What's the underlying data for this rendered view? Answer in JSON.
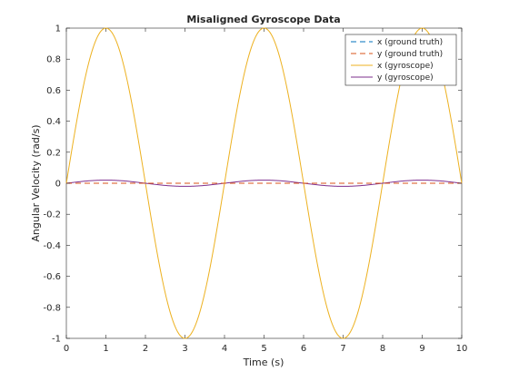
{
  "chart_data": {
    "type": "line",
    "title": "Misaligned Gyroscope Data",
    "xlabel": "Time (s)",
    "ylabel": "Angular Velocity (rad/s)",
    "xlim": [
      0,
      10
    ],
    "ylim": [
      -1,
      1
    ],
    "xticks": [
      0,
      1,
      2,
      3,
      4,
      5,
      6,
      7,
      8,
      9,
      10
    ],
    "xtick_labels": [
      "0",
      "1",
      "2",
      "3",
      "4",
      "5",
      "6",
      "7",
      "8",
      "9",
      "10"
    ],
    "yticks": [
      -1,
      -0.8,
      -0.6,
      -0.4,
      -0.2,
      0,
      0.2,
      0.4,
      0.6,
      0.8,
      1
    ],
    "ytick_labels": [
      "-1",
      "-0.8",
      "-0.6",
      "-0.4",
      "-0.2",
      "0",
      "0.2",
      "0.4",
      "0.6",
      "0.8",
      "1"
    ],
    "grid": false,
    "legend_position": "top-right",
    "series": [
      {
        "name": "x (ground truth)",
        "style": "dashed",
        "color": "#0072BD",
        "x": [
          0,
          10
        ],
        "y": [
          0,
          0
        ]
      },
      {
        "name": "y (ground truth)",
        "style": "dashed",
        "color": "#D95319",
        "x": [
          0,
          10
        ],
        "y": [
          0,
          0
        ]
      },
      {
        "name": "x (gyroscope)",
        "style": "solid",
        "color": "#EDB120",
        "x": [
          0,
          0.25,
          0.5,
          0.75,
          1,
          1.25,
          1.5,
          1.75,
          2,
          2.25,
          2.5,
          2.75,
          3,
          3.25,
          3.5,
          3.75,
          4,
          4.25,
          4.5,
          4.75,
          5,
          5.25,
          5.5,
          5.75,
          6,
          6.25,
          6.5,
          6.75,
          7,
          7.25,
          7.5,
          7.75,
          8,
          8.25,
          8.5,
          8.75,
          9,
          9.25,
          9.5,
          9.75,
          10
        ],
        "y": [
          0,
          0.383,
          0.707,
          0.924,
          1,
          0.924,
          0.707,
          0.383,
          0,
          -0.383,
          -0.707,
          -0.924,
          -1,
          -0.924,
          -0.707,
          -0.383,
          0,
          0.383,
          0.707,
          0.924,
          1,
          0.924,
          0.707,
          0.383,
          0,
          -0.383,
          -0.707,
          -0.924,
          -1,
          -0.924,
          -0.707,
          -0.383,
          0,
          0.383,
          0.707,
          0.924,
          1,
          0.924,
          0.707,
          0.383,
          0
        ]
      },
      {
        "name": "y (gyroscope)",
        "style": "solid",
        "color": "#7E2F8E",
        "x": [
          0,
          0.25,
          0.5,
          0.75,
          1,
          1.25,
          1.5,
          1.75,
          2,
          2.25,
          2.5,
          2.75,
          3,
          3.25,
          3.5,
          3.75,
          4,
          4.25,
          4.5,
          4.75,
          5,
          5.25,
          5.5,
          5.75,
          6,
          6.25,
          6.5,
          6.75,
          7,
          7.25,
          7.5,
          7.75,
          8,
          8.25,
          8.5,
          8.75,
          9,
          9.25,
          9.5,
          9.75,
          10
        ],
        "y": [
          0,
          0.0077,
          0.0141,
          0.0185,
          0.02,
          0.0185,
          0.0141,
          0.0077,
          0,
          -0.0077,
          -0.0141,
          -0.0185,
          -0.02,
          -0.0185,
          -0.0141,
          -0.0077,
          0,
          0.0077,
          0.0141,
          0.0185,
          0.02,
          0.0185,
          0.0141,
          0.0077,
          0,
          -0.0077,
          -0.0141,
          -0.0185,
          -0.02,
          -0.0185,
          -0.0141,
          -0.0077,
          0,
          0.0077,
          0.0141,
          0.0185,
          0.02,
          0.0185,
          0.0141,
          0.0077,
          0
        ]
      }
    ]
  }
}
